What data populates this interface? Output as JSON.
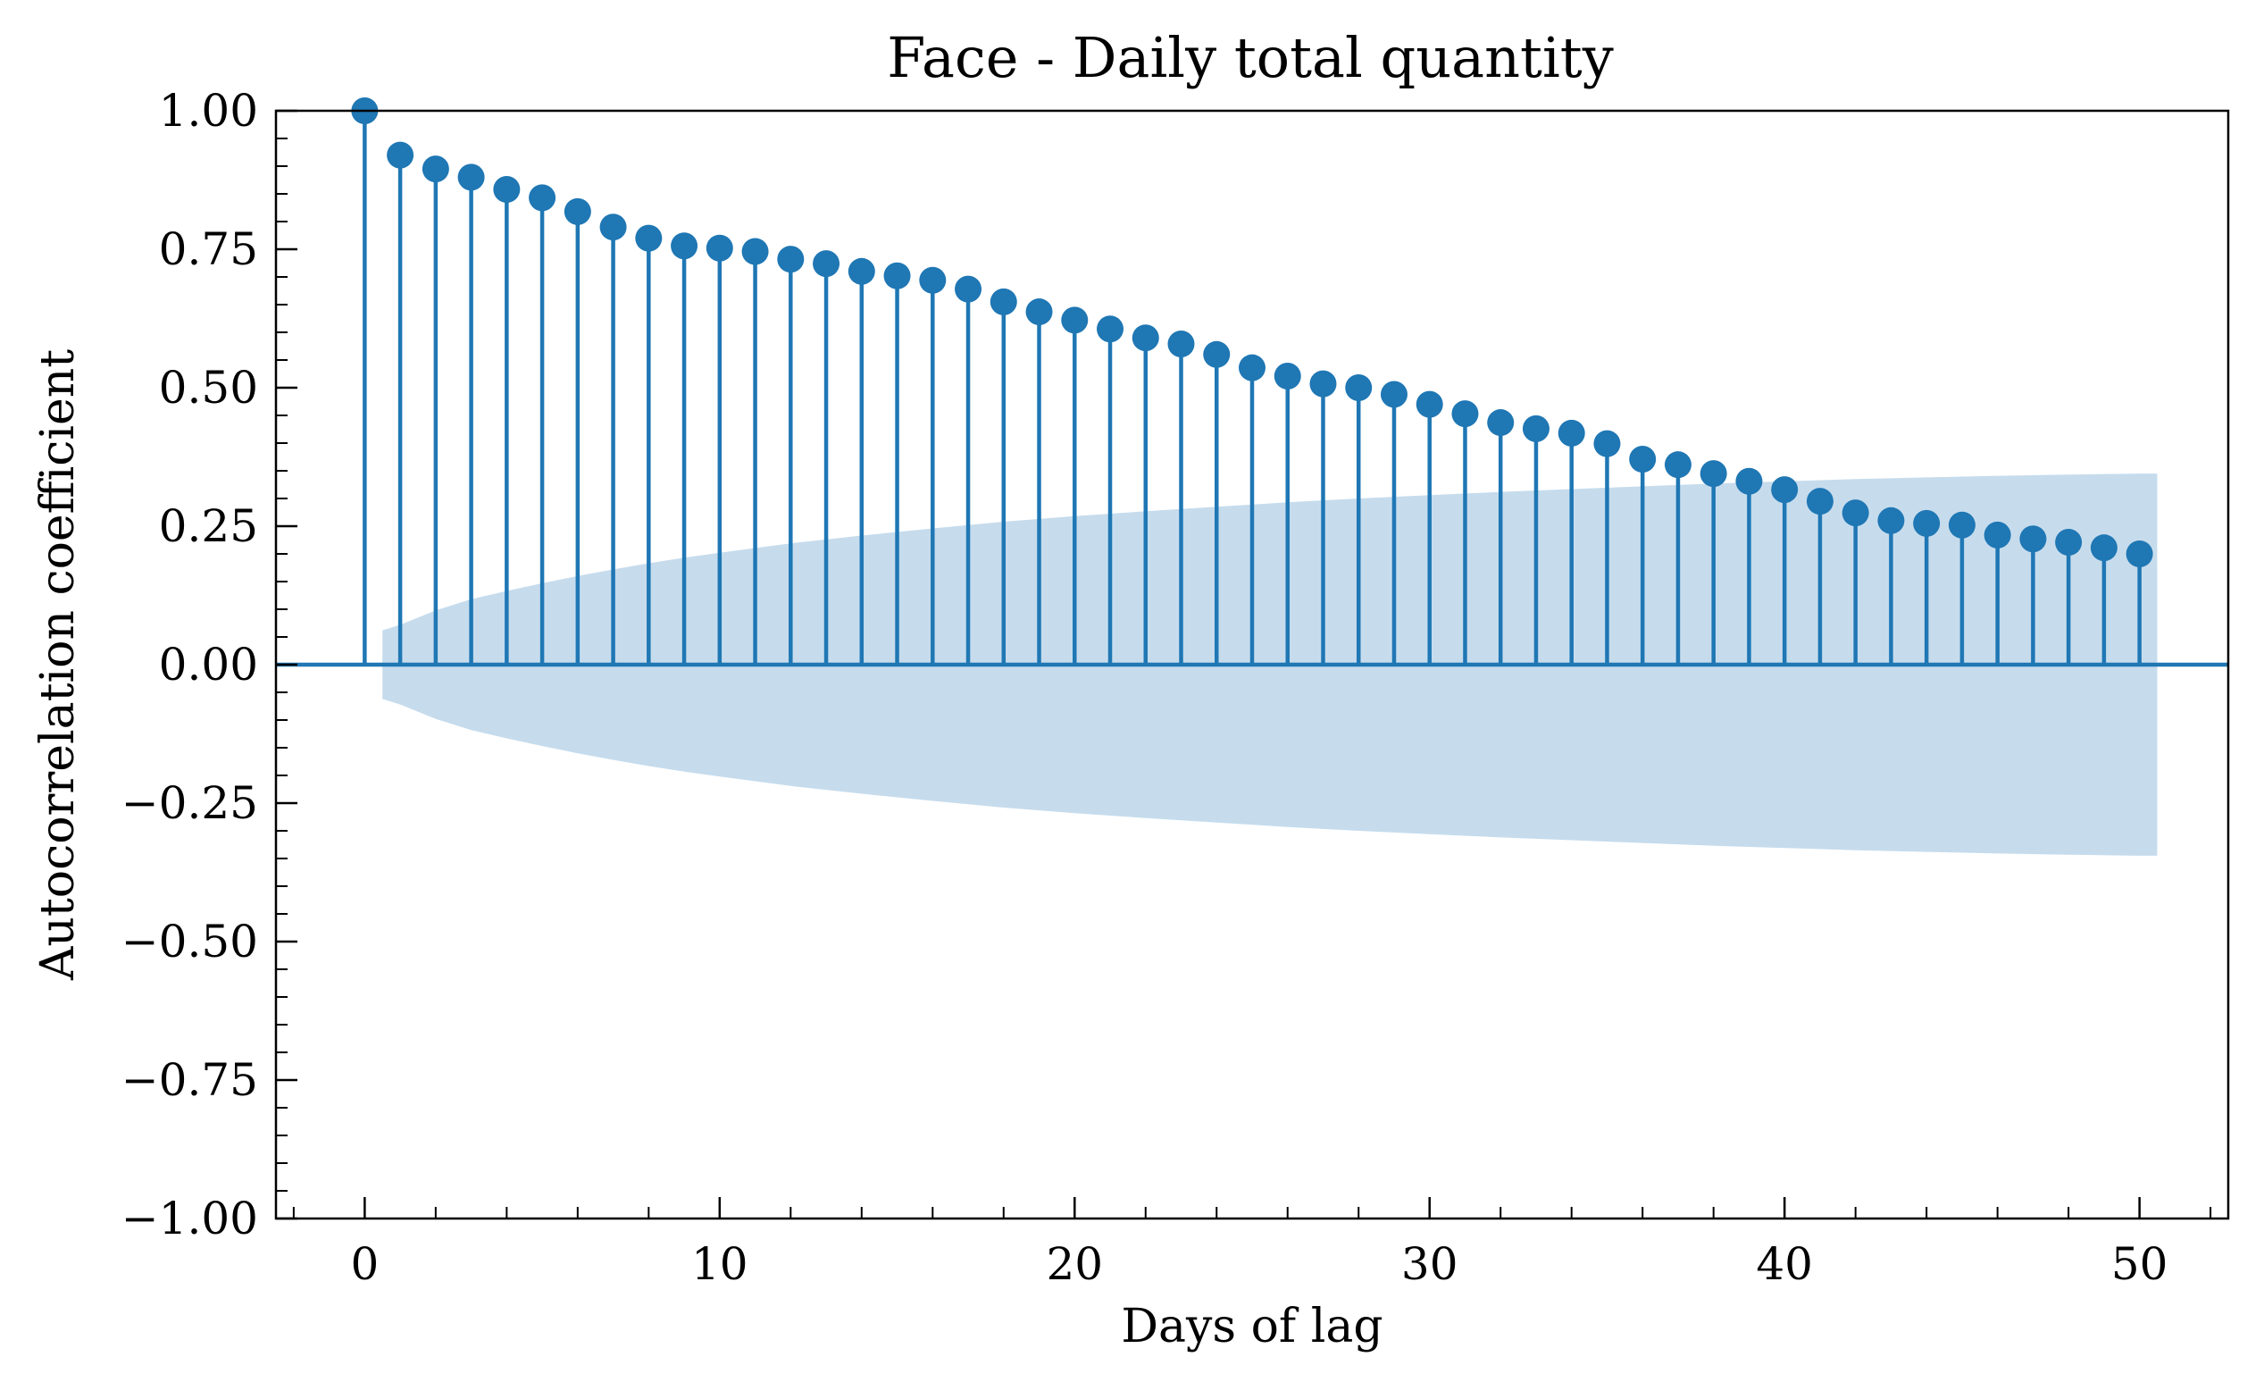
{
  "chart_data": {
    "type": "stem",
    "title": "Face - Daily total quantity",
    "xlabel": "Days of lag",
    "ylabel": "Autocorrelation coefficient",
    "xlim": [
      -2.5,
      52.5
    ],
    "ylim": [
      -1.0,
      1.0
    ],
    "x_ticks": [
      0,
      10,
      20,
      30,
      40,
      50
    ],
    "x_tick_labels": [
      "0",
      "10",
      "20",
      "30",
      "40",
      "50"
    ],
    "y_ticks": [
      1.0,
      0.75,
      0.5,
      0.25,
      0.0,
      -0.25,
      -0.5,
      -0.75,
      -1.0
    ],
    "y_tick_labels": [
      "1.00",
      "0.75",
      "0.50",
      "0.25",
      "0.00",
      "−0.25",
      "−0.50",
      "−0.75",
      "−1.00"
    ],
    "grid": false,
    "colors": {
      "series": "#1f77b4",
      "confidence_band": "#c6dced"
    },
    "series": [
      {
        "lags": [
          0,
          1,
          2,
          3,
          4,
          5,
          6,
          7,
          8,
          9,
          10,
          11,
          12,
          13,
          14,
          15,
          16,
          17,
          18,
          19,
          20,
          21,
          22,
          23,
          24,
          25,
          26,
          27,
          28,
          29,
          30,
          31,
          32,
          33,
          34,
          35,
          36,
          37,
          38,
          39,
          40,
          41,
          42,
          43,
          44,
          45,
          46,
          47,
          48,
          49,
          50
        ],
        "values": [
          1.0,
          0.92,
          0.895,
          0.88,
          0.858,
          0.843,
          0.818,
          0.79,
          0.77,
          0.756,
          0.752,
          0.746,
          0.732,
          0.724,
          0.71,
          0.702,
          0.694,
          0.678,
          0.655,
          0.637,
          0.622,
          0.606,
          0.59,
          0.579,
          0.56,
          0.536,
          0.521,
          0.507,
          0.5,
          0.488,
          0.47,
          0.453,
          0.437,
          0.426,
          0.418,
          0.399,
          0.371,
          0.361,
          0.345,
          0.331,
          0.316,
          0.295,
          0.274,
          0.26,
          0.255,
          0.252,
          0.234,
          0.227,
          0.221,
          0.211,
          0.2
        ]
      }
    ],
    "confidence_band": {
      "x": [
        0.5,
        1,
        2,
        3,
        4,
        5,
        6,
        7,
        8,
        9,
        10,
        12,
        14,
        16,
        18,
        20,
        22,
        24,
        26,
        28,
        30,
        32,
        34,
        36,
        38,
        40,
        42,
        44,
        46,
        48,
        50,
        50.5
      ],
      "upper": [
        0.062,
        0.072,
        0.098,
        0.118,
        0.133,
        0.147,
        0.16,
        0.172,
        0.183,
        0.193,
        0.202,
        0.219,
        0.233,
        0.246,
        0.258,
        0.268,
        0.277,
        0.285,
        0.293,
        0.3,
        0.306,
        0.312,
        0.317,
        0.322,
        0.327,
        0.331,
        0.335,
        0.338,
        0.341,
        0.343,
        0.345,
        0.345
      ]
    }
  }
}
